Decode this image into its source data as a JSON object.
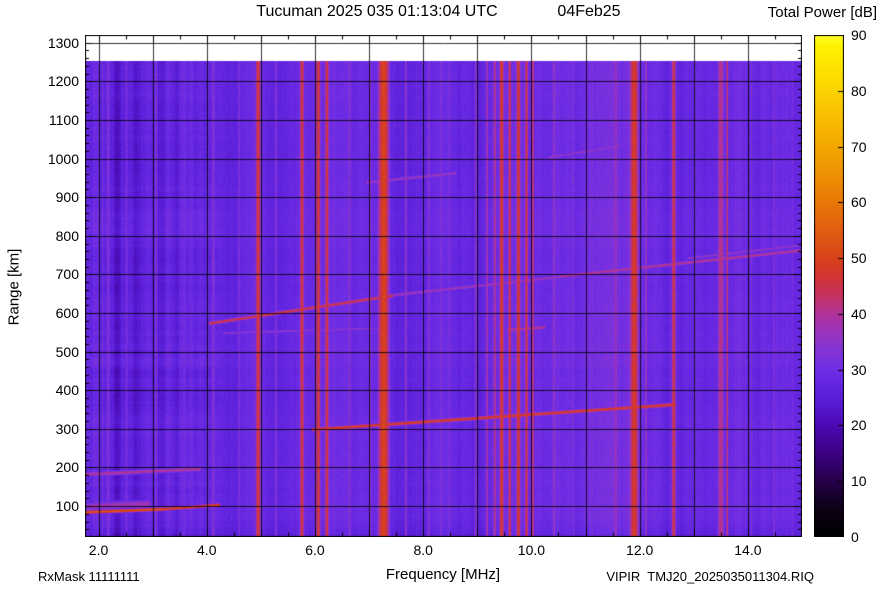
{
  "header": {
    "title": "Tucuman 2025 035 01:13:04 UTC",
    "date": "04Feb25"
  },
  "footer": {
    "rx_mask": "RxMask 11111111",
    "file": "VIPIR  TMJ20_2025035011304.RIQ"
  },
  "chart_data": {
    "type": "heatmap",
    "title": "Tucuman 2025 035 01:13:04 UTC 04Feb25",
    "xlabel": "Frequency [MHz]",
    "ylabel": "Range [km]",
    "zlabel": "Total Power [dB]",
    "xlim": [
      1.75,
      15.0
    ],
    "ylim": [
      20,
      1320
    ],
    "zlim": [
      0,
      90
    ],
    "grid": true,
    "x_tick_values": [
      2,
      4,
      6,
      8,
      10,
      12,
      14
    ],
    "x_tick_labels": [
      "2.0",
      "4.0",
      "6.0",
      "8.0",
      "10.0",
      "12.0",
      "14.0"
    ],
    "y_tick_values": [
      100,
      200,
      300,
      400,
      500,
      600,
      700,
      800,
      900,
      1000,
      1100,
      1200,
      1300
    ],
    "y_tick_labels": [
      "100",
      "200",
      "300",
      "400",
      "500",
      "600",
      "700",
      "800",
      "900",
      "1000",
      "1100",
      "1200",
      "1300"
    ],
    "colorbar_ticks": [
      0,
      10,
      20,
      30,
      40,
      50,
      60,
      70,
      80,
      90
    ],
    "colorbar_tick_labels": [
      "0",
      "10",
      "20",
      "30",
      "40",
      "50",
      "60",
      "70",
      "80",
      "90"
    ],
    "background_db": 29,
    "data_range_km": [
      20,
      1252
    ],
    "colormap_stops": [
      [
        0,
        "#000000"
      ],
      [
        5,
        "#0e0016"
      ],
      [
        10,
        "#26004a"
      ],
      [
        15,
        "#3c0082"
      ],
      [
        20,
        "#4c0ab4"
      ],
      [
        24,
        "#581cd4"
      ],
      [
        28,
        "#6628e2"
      ],
      [
        31,
        "#7530e2"
      ],
      [
        34,
        "#8834d2"
      ],
      [
        37,
        "#9c34bc"
      ],
      [
        40,
        "#b2329a"
      ],
      [
        43,
        "#c43268"
      ],
      [
        46,
        "#d0343c"
      ],
      [
        49,
        "#d63e20"
      ],
      [
        53,
        "#de5414"
      ],
      [
        58,
        "#e66e0a"
      ],
      [
        64,
        "#ee8c04"
      ],
      [
        70,
        "#f4a800"
      ],
      [
        76,
        "#f8c200"
      ],
      [
        82,
        "#fcdc00"
      ],
      [
        88,
        "#fef200"
      ],
      [
        90,
        "#ffff28"
      ]
    ],
    "rfi_bands_format": [
      "freq_mhz",
      "width_mhz",
      "power_db"
    ],
    "rfi_bands": [
      [
        2.18,
        0.1,
        33
      ],
      [
        2.52,
        0.07,
        32
      ],
      [
        3.06,
        0.09,
        33
      ],
      [
        3.58,
        0.07,
        32
      ],
      [
        4.12,
        0.09,
        34
      ],
      [
        4.6,
        0.06,
        33
      ],
      [
        4.95,
        0.11,
        47
      ],
      [
        5.28,
        0.06,
        34
      ],
      [
        5.76,
        0.1,
        46
      ],
      [
        6.06,
        0.1,
        47
      ],
      [
        6.22,
        0.09,
        46
      ],
      [
        6.64,
        0.07,
        35
      ],
      [
        7.02,
        0.06,
        36
      ],
      [
        7.27,
        0.24,
        50
      ],
      [
        7.68,
        0.06,
        36
      ],
      [
        8.1,
        0.08,
        34
      ],
      [
        8.32,
        0.06,
        33
      ],
      [
        8.48,
        0.06,
        33
      ],
      [
        8.97,
        0.07,
        35
      ],
      [
        9.18,
        0.05,
        40
      ],
      [
        9.32,
        0.06,
        42
      ],
      [
        9.45,
        0.1,
        48
      ],
      [
        9.6,
        0.07,
        46
      ],
      [
        9.76,
        0.09,
        48
      ],
      [
        9.91,
        0.07,
        46
      ],
      [
        10.03,
        0.05,
        44
      ],
      [
        10.42,
        0.07,
        36
      ],
      [
        10.78,
        0.05,
        34
      ],
      [
        11.12,
        0.05,
        34
      ],
      [
        11.56,
        0.07,
        38
      ],
      [
        11.9,
        0.2,
        48
      ],
      [
        12.12,
        0.05,
        38
      ],
      [
        12.63,
        0.09,
        46
      ],
      [
        13.02,
        0.05,
        34
      ],
      [
        13.5,
        0.16,
        41
      ],
      [
        13.62,
        0.05,
        44
      ],
      [
        14.07,
        0.05,
        34
      ],
      [
        14.48,
        0.07,
        33
      ],
      [
        14.82,
        0.05,
        33
      ]
    ],
    "dark_columns_format": [
      "freq_mhz",
      "width_mhz",
      "depth_db"
    ],
    "dark_columns": [
      [
        2.33,
        0.1,
        5
      ],
      [
        2.72,
        0.14,
        4
      ],
      [
        3.18,
        0.1,
        4
      ],
      [
        3.44,
        0.08,
        3
      ],
      [
        3.8,
        0.08,
        3
      ]
    ],
    "echo_traces_format": [
      "f_start_mhz",
      "range_start_km",
      "f_end_mhz",
      "range_end_km",
      "power_db",
      "half_width_km"
    ],
    "echo_traces": [
      [
        1.75,
        84,
        3.2,
        92,
        53,
        5
      ],
      [
        3.2,
        92,
        4.25,
        103,
        50,
        5
      ],
      [
        1.78,
        99,
        2.95,
        106,
        38,
        13
      ],
      [
        1.75,
        182,
        3.9,
        196,
        40,
        7
      ],
      [
        5.95,
        298,
        12.68,
        363,
        49,
        5.5
      ],
      [
        4.05,
        573,
        7.45,
        645,
        46,
        5.5
      ],
      [
        7.45,
        646,
        10.55,
        694,
        38,
        5.5
      ],
      [
        10.55,
        695,
        14.98,
        762,
        41,
        5.5
      ],
      [
        4.3,
        548,
        7.1,
        560,
        35,
        5
      ],
      [
        9.55,
        556,
        10.25,
        563,
        41,
        6
      ],
      [
        6.95,
        938,
        8.6,
        962,
        37,
        6
      ],
      [
        10.3,
        1002,
        11.65,
        1033,
        36,
        5
      ],
      [
        12.9,
        742,
        14.95,
        775,
        36,
        5
      ]
    ]
  }
}
